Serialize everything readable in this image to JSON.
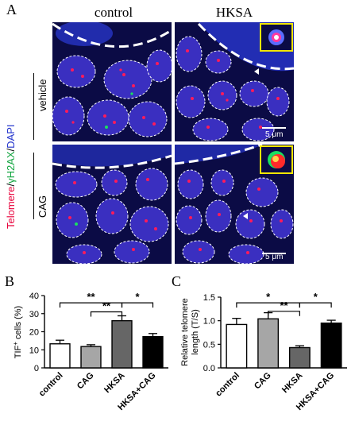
{
  "figure": {
    "panel_a": "A",
    "panel_b": "B",
    "panel_c": "C",
    "col_control": "control",
    "col_hksa": "HKSA",
    "row_vehicle": "vehicle",
    "row_cag": "CAG",
    "stain_telomere": "Telomere",
    "stain_sep1": "/",
    "stain_h2ax": "γH2AX",
    "stain_sep2": "/",
    "stain_dapi": "DAPI",
    "scale_top": "5 μm",
    "scale_bottom": "5 μm",
    "colors": {
      "telomere": "#e8003a",
      "h2ax": "#12c24a",
      "dapi": "#2233cc",
      "inset_border": "#f2e600"
    }
  },
  "chart_data": [
    {
      "type": "bar",
      "panel": "B",
      "categories": [
        "control",
        "CAG",
        "HKSA",
        "HKSA+CAG"
      ],
      "values": [
        13.3,
        11.8,
        26.1,
        17.3
      ],
      "errors": [
        2.0,
        1.0,
        2.7,
        1.7
      ],
      "bar_colors": [
        "#ffffff",
        "#a6a6a6",
        "#666666",
        "#000000"
      ],
      "ylabel_prefix": "TIF",
      "ylabel_sup": "+",
      "ylabel_suffix": " cells (%)",
      "ylim": [
        0,
        40
      ],
      "yticks": [
        "0",
        "10",
        "20",
        "30",
        "40"
      ],
      "significance": [
        {
          "from": 0,
          "to": 2,
          "label": "**",
          "level": 36
        },
        {
          "from": 1,
          "to": 2,
          "label": "**",
          "level": 31
        },
        {
          "from": 2,
          "to": 3,
          "label": "*",
          "level": 36
        }
      ]
    },
    {
      "type": "bar",
      "panel": "C",
      "categories": [
        "control",
        "CAG",
        "HKSA",
        "HKSA+CAG"
      ],
      "values": [
        0.92,
        1.04,
        0.43,
        0.95
      ],
      "errors": [
        0.13,
        0.13,
        0.04,
        0.06
      ],
      "bar_colors": [
        "#ffffff",
        "#a6a6a6",
        "#666666",
        "#000000"
      ],
      "ylabel_line1": "Relative telomere",
      "ylabel_line2": "length (T/S)",
      "ylim": [
        0,
        1.5
      ],
      "yticks": [
        "0.0",
        "0.5",
        "1.0",
        "1.5"
      ],
      "significance": [
        {
          "from": 0,
          "to": 2,
          "label": "*",
          "level": 1.38
        },
        {
          "from": 1,
          "to": 2,
          "label": "**",
          "level": 1.2
        },
        {
          "from": 2,
          "to": 3,
          "label": "*",
          "level": 1.38
        }
      ]
    }
  ]
}
